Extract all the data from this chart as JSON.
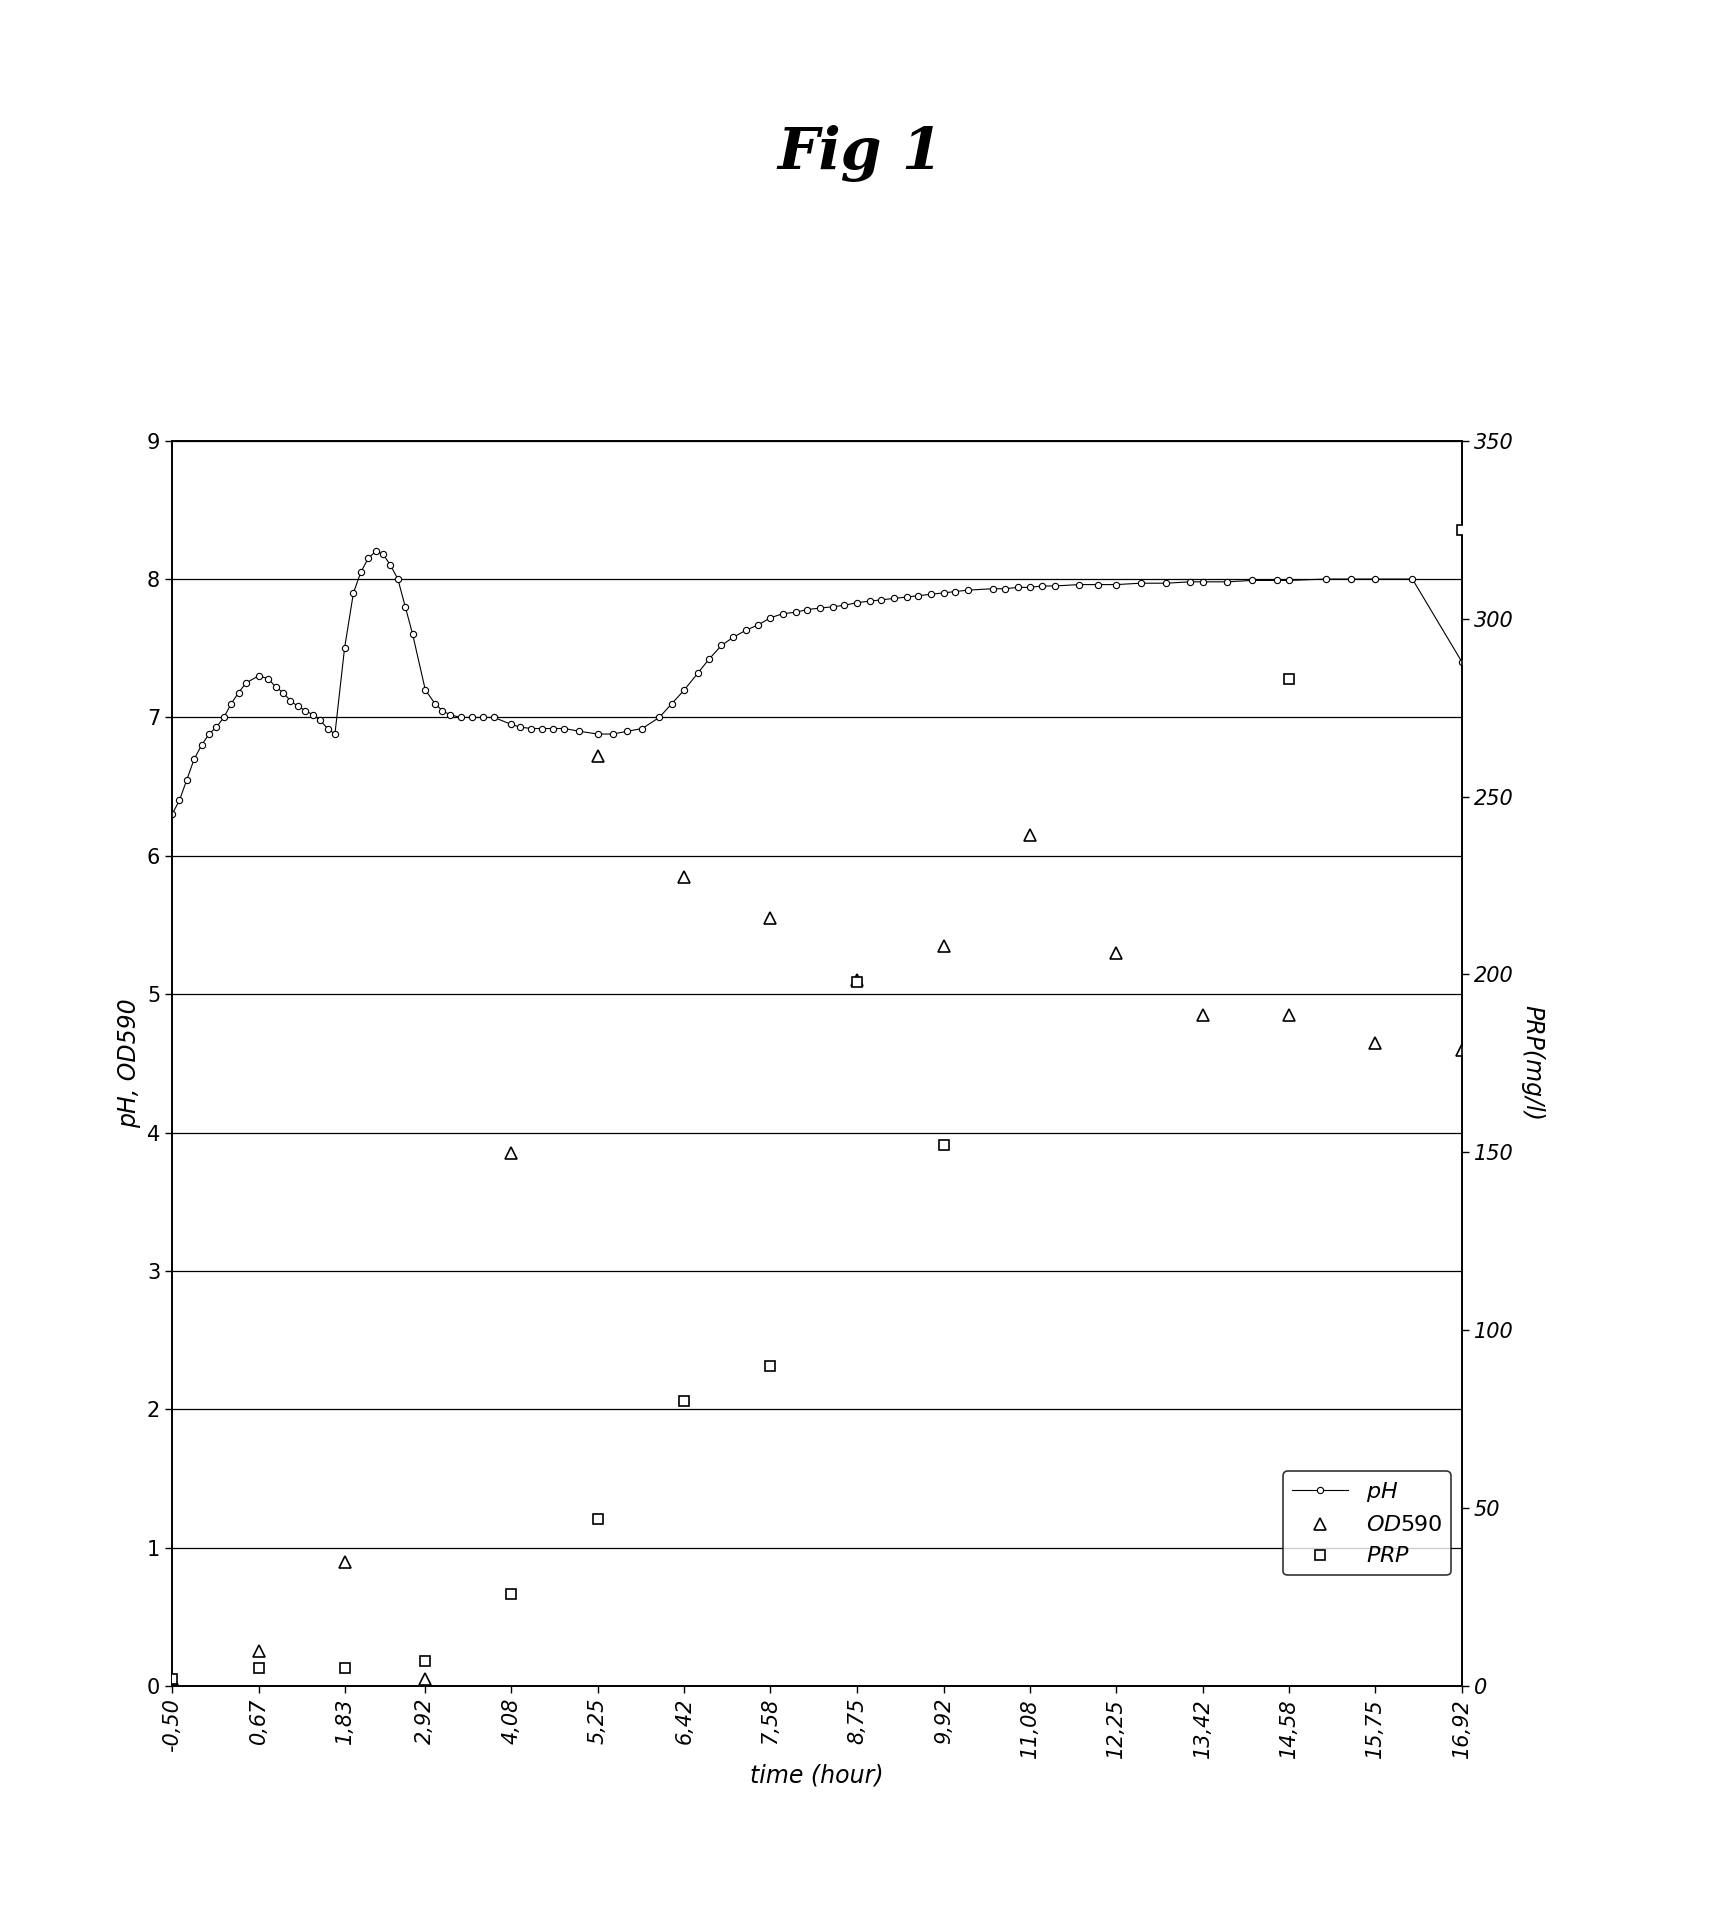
{
  "title": "Fig 1",
  "xlabel": "time (hour)",
  "ylabel_left": "pH, OD590",
  "ylabel_right": "PRP(mg/l)",
  "ylim_left": [
    0,
    9
  ],
  "ylim_right": [
    0,
    350
  ],
  "yticks_left": [
    0,
    1,
    2,
    3,
    4,
    5,
    6,
    7,
    8,
    9
  ],
  "yticks_right": [
    0,
    50,
    100,
    150,
    200,
    250,
    300,
    350
  ],
  "xtick_labels": [
    "-0,50",
    "0,67",
    "1,83",
    "2,92",
    "4,08",
    "5,25",
    "6,42",
    "7,58",
    "8,75",
    "9,92",
    "11,08",
    "12,25",
    "13,42",
    "14,58",
    "15,75",
    "16,92"
  ],
  "pH_x": [
    -0.5,
    -0.4,
    -0.3,
    -0.2,
    -0.1,
    0.0,
    0.1,
    0.2,
    0.3,
    0.4,
    0.5,
    0.67,
    0.8,
    0.9,
    1.0,
    1.1,
    1.2,
    1.3,
    1.4,
    1.5,
    1.6,
    1.7,
    1.83,
    1.95,
    2.05,
    2.15,
    2.25,
    2.35,
    2.45,
    2.55,
    2.65,
    2.75,
    2.92,
    3.05,
    3.15,
    3.25,
    3.4,
    3.55,
    3.7,
    3.85,
    4.08,
    4.2,
    4.35,
    4.5,
    4.65,
    4.8,
    5.0,
    5.25,
    5.45,
    5.65,
    5.85,
    6.08,
    6.25,
    6.42,
    6.6,
    6.75,
    6.92,
    7.08,
    7.25,
    7.42,
    7.58,
    7.75,
    7.92,
    8.08,
    8.25,
    8.42,
    8.58,
    8.75,
    8.92,
    9.08,
    9.25,
    9.42,
    9.58,
    9.75,
    9.92,
    10.08,
    10.25,
    10.58,
    10.75,
    10.92,
    11.08,
    11.25,
    11.42,
    11.75,
    12.0,
    12.25,
    12.58,
    12.92,
    13.25,
    13.42,
    13.75,
    14.08,
    14.42,
    14.58,
    15.08,
    15.42,
    15.75,
    16.25,
    16.92
  ],
  "pH_y": [
    6.3,
    6.4,
    6.55,
    6.7,
    6.8,
    6.88,
    6.93,
    7.0,
    7.1,
    7.18,
    7.25,
    7.3,
    7.28,
    7.22,
    7.18,
    7.12,
    7.08,
    7.05,
    7.02,
    6.98,
    6.92,
    6.88,
    7.5,
    7.9,
    8.05,
    8.15,
    8.2,
    8.18,
    8.1,
    8.0,
    7.8,
    7.6,
    7.2,
    7.1,
    7.05,
    7.02,
    7.0,
    7.0,
    7.0,
    7.0,
    6.95,
    6.93,
    6.92,
    6.92,
    6.92,
    6.92,
    6.9,
    6.88,
    6.88,
    6.9,
    6.92,
    7.0,
    7.1,
    7.2,
    7.32,
    7.42,
    7.52,
    7.58,
    7.63,
    7.67,
    7.72,
    7.75,
    7.76,
    7.78,
    7.79,
    7.8,
    7.81,
    7.83,
    7.84,
    7.85,
    7.86,
    7.87,
    7.88,
    7.89,
    7.9,
    7.91,
    7.92,
    7.93,
    7.93,
    7.94,
    7.94,
    7.95,
    7.95,
    7.96,
    7.96,
    7.96,
    7.97,
    7.97,
    7.98,
    7.98,
    7.98,
    7.99,
    7.99,
    7.99,
    8.0,
    8.0,
    8.0,
    8.0,
    7.4
  ],
  "OD590_x": [
    -0.5,
    0.67,
    1.83,
    2.92,
    4.08,
    5.25,
    6.42,
    7.58,
    8.75,
    9.92,
    11.08,
    12.25,
    13.42,
    14.58,
    15.75,
    16.92
  ],
  "OD590_y": [
    0.05,
    0.25,
    0.9,
    0.05,
    3.85,
    6.72,
    5.85,
    5.55,
    5.1,
    5.35,
    6.15,
    5.3,
    4.85,
    4.85,
    4.65,
    4.6
  ],
  "PRP_x": [
    -0.5,
    0.67,
    1.83,
    2.92,
    4.08,
    5.25,
    6.42,
    7.58,
    8.75,
    9.92,
    14.58,
    15.75,
    16.92
  ],
  "PRP_y_mgl": [
    2,
    5,
    5,
    7,
    26,
    47,
    80,
    90,
    198,
    152,
    283,
    null,
    325
  ],
  "background_color": "#ffffff"
}
